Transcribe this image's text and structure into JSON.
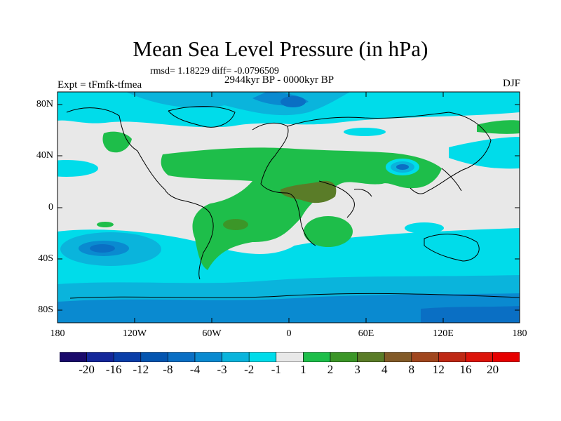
{
  "title": "Mean Sea Level Pressure (in hPa)",
  "stats": "rmsd= 1.18229 diff= -0.0796509",
  "experiment": "Expt = tFmfk-tfmea",
  "period": "2944kyr BP - 0000kyr BP",
  "season": "DJF",
  "lat_ticks": [
    "80N",
    "40N",
    "0",
    "40S",
    "80S"
  ],
  "lon_ticks": [
    "180",
    "120W",
    "60W",
    "0",
    "60E",
    "120E",
    "180"
  ],
  "colorbar": {
    "labels": [
      "-20",
      "-16",
      "-12",
      "-8",
      "-4",
      "-3",
      "-2",
      "-1",
      "1",
      "2",
      "3",
      "4",
      "8",
      "12",
      "16",
      "20"
    ],
    "colors": [
      "#1a0a6b",
      "#14279a",
      "#0a3ea8",
      "#0455b0",
      "#0a6fc4",
      "#0a8ad0",
      "#0ab4dc",
      "#00dcea",
      "#e8e8e8",
      "#1ebe4a",
      "#3c9628",
      "#5a7c28",
      "#825a28",
      "#a0461e",
      "#be2814",
      "#dc140a",
      "#e60000"
    ]
  }
}
